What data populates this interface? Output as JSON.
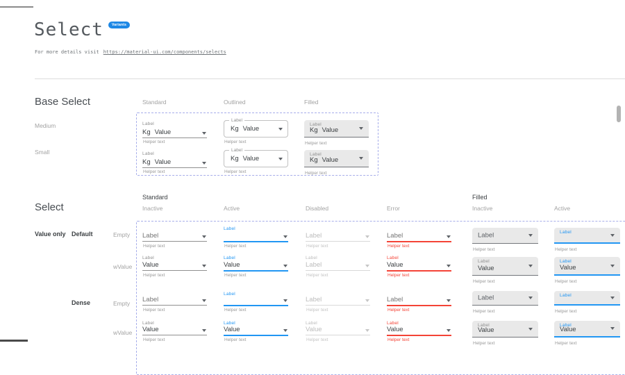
{
  "header": {
    "title": "Select",
    "badge": "Variants",
    "subtitle_prefix": "For more details visit",
    "subtitle_link": "https://material-ui.com/components/selects"
  },
  "base_select": {
    "heading": "Base Select",
    "columns": [
      "Standard",
      "Outlined",
      "Filled"
    ],
    "row_labels": [
      "Medium",
      "Small"
    ],
    "cells_text": {
      "label": "Label",
      "adornment": "Kg",
      "value": "Value",
      "helper": "Helper text"
    }
  },
  "select": {
    "heading": "Select",
    "groups": [
      "Standard",
      "Filled"
    ],
    "columns": [
      "Inactive",
      "Active",
      "Disabled",
      "Error",
      "Inactive",
      "Active"
    ],
    "row_group_label": "Value only",
    "rows": [
      {
        "variant_label": "Default",
        "state_label": "Empty",
        "cells": [
          {
            "variant": "standard",
            "state": "inactive",
            "label": "",
            "value": "Label",
            "value_style": "placeholder",
            "helper": "Helper text"
          },
          {
            "variant": "standard",
            "state": "active",
            "label": "Label",
            "value": "",
            "value_style": "normal",
            "helper": "Helper text"
          },
          {
            "variant": "standard",
            "state": "disabled",
            "label": "",
            "value": "Label",
            "value_style": "disabled",
            "helper": "Helper text"
          },
          {
            "variant": "standard",
            "state": "error",
            "label": "",
            "value": "Label",
            "value_style": "placeholder",
            "helper": "Helper text"
          },
          {
            "variant": "filled",
            "state": "inactive",
            "label": "",
            "value": "Label",
            "value_style": "placeholder",
            "helper": "Helper text"
          },
          {
            "variant": "filled",
            "state": "active",
            "label": "Label",
            "value": "",
            "value_style": "normal",
            "helper": "Helper text"
          }
        ]
      },
      {
        "variant_label": "",
        "state_label": "wValue",
        "cells": [
          {
            "variant": "standard",
            "state": "inactive",
            "label": "Label",
            "value": "Value",
            "value_style": "normal",
            "helper": "Helper text"
          },
          {
            "variant": "standard",
            "state": "active",
            "label": "Label",
            "value": "Value",
            "value_style": "normal",
            "helper": "Helper text"
          },
          {
            "variant": "standard",
            "state": "disabled",
            "label": "Label",
            "value": "Label",
            "value_style": "disabled",
            "helper": "Helper text"
          },
          {
            "variant": "standard",
            "state": "error",
            "label": "Label",
            "value": "Value",
            "value_style": "normal",
            "helper": "Helper text"
          },
          {
            "variant": "filled",
            "state": "inactive",
            "label": "Label",
            "value": "Value",
            "value_style": "normal",
            "helper": "Helper text"
          },
          {
            "variant": "filled",
            "state": "active",
            "label": "Label",
            "value": "Value",
            "value_style": "normal",
            "helper": "Helper text"
          }
        ]
      },
      {
        "variant_label": "Dense",
        "state_label": "Empty",
        "cells": [
          {
            "variant": "standard",
            "state": "inactive",
            "label": "",
            "value": "Label",
            "value_style": "placeholder",
            "helper": "Helper text"
          },
          {
            "variant": "standard",
            "state": "active",
            "label": "Label",
            "value": "",
            "value_style": "normal",
            "helper": "Helper text"
          },
          {
            "variant": "standard",
            "state": "disabled",
            "label": "",
            "value": "Label",
            "value_style": "disabled",
            "helper": "Helper text"
          },
          {
            "variant": "standard",
            "state": "error",
            "label": "",
            "value": "Label",
            "value_style": "placeholder",
            "helper": "Helper text"
          },
          {
            "variant": "filled",
            "state": "inactive",
            "label": "",
            "value": "Label",
            "value_style": "placeholder",
            "helper": "Helper text"
          },
          {
            "variant": "filled",
            "state": "active",
            "label": "Label",
            "value": "",
            "value_style": "normal",
            "helper": "Helper text"
          }
        ]
      },
      {
        "variant_label": "",
        "state_label": "wValue",
        "cells": [
          {
            "variant": "standard",
            "state": "inactive",
            "label": "Label",
            "value": "Value",
            "value_style": "normal",
            "helper": "Helper text"
          },
          {
            "variant": "standard",
            "state": "active",
            "label": "Label",
            "value": "Value",
            "value_style": "normal",
            "helper": "Helper text"
          },
          {
            "variant": "standard",
            "state": "disabled",
            "label": "Label",
            "value": "Value",
            "value_style": "disabled",
            "helper": "Helper text"
          },
          {
            "variant": "standard",
            "state": "error",
            "label": "Label",
            "value": "Value",
            "value_style": "normal",
            "helper": "Helper text"
          },
          {
            "variant": "filled",
            "state": "inactive",
            "label": "Label",
            "value": "Value",
            "value_style": "normal",
            "helper": "Helper text"
          },
          {
            "variant": "filled",
            "state": "active",
            "label": "Label",
            "value": "Value",
            "value_style": "normal",
            "helper": "Helper text"
          }
        ]
      }
    ]
  },
  "colors": {
    "accent_blue": "#2196F3",
    "badge_blue": "#1E88E5",
    "error_red": "#F44336",
    "filled_bg": "#E9E9E9",
    "dashed_border": "#A6ADEA"
  }
}
